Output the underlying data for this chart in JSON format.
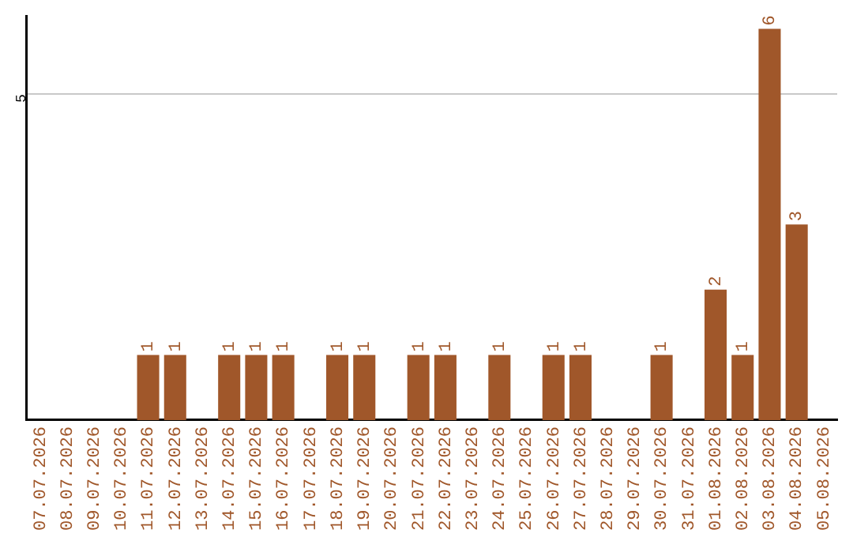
{
  "chart_data": {
    "type": "bar",
    "categories": [
      "07.07.2026",
      "08.07.2026",
      "09.07.2026",
      "10.07.2026",
      "11.07.2026",
      "12.07.2026",
      "13.07.2026",
      "14.07.2026",
      "15.07.2026",
      "16.07.2026",
      "17.07.2026",
      "18.07.2026",
      "19.07.2026",
      "20.07.2026",
      "21.07.2026",
      "22.07.2026",
      "23.07.2026",
      "24.07.2026",
      "25.07.2026",
      "26.07.2026",
      "27.07.2026",
      "28.07.2026",
      "29.07.2026",
      "30.07.2026",
      "31.07.2026",
      "01.08.2026",
      "02.08.2026",
      "03.08.2026",
      "04.08.2026",
      "05.08.2026"
    ],
    "values": [
      null,
      null,
      null,
      null,
      1,
      1,
      null,
      1,
      1,
      1,
      null,
      1,
      1,
      null,
      1,
      1,
      null,
      1,
      null,
      1,
      1,
      null,
      null,
      1,
      null,
      2,
      1,
      6,
      3,
      null
    ],
    "color": "#a0572a",
    "ylim": [
      0,
      6.2
    ],
    "yticks": [
      5
    ],
    "grid": "y",
    "data_labels": true,
    "legend": false
  }
}
